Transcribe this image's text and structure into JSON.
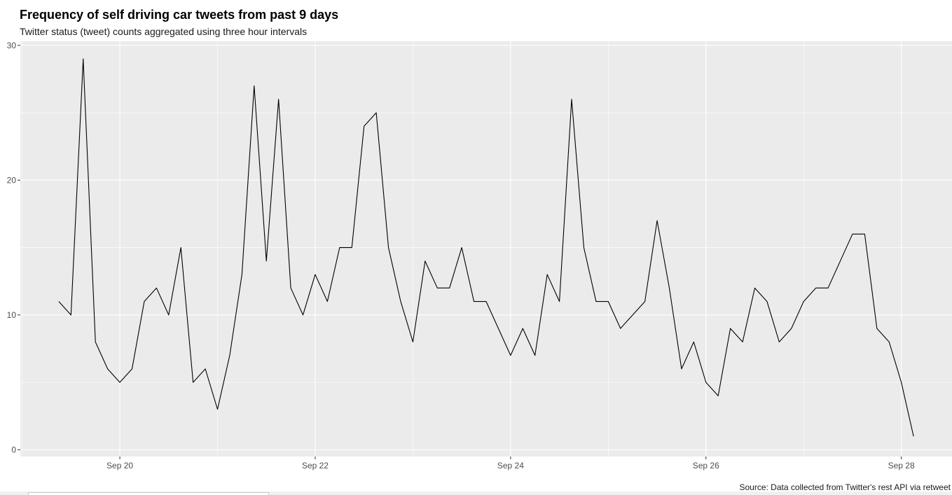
{
  "chart_data": {
    "type": "line",
    "title": "Frequency of self driving car tweets from past 9 days",
    "subtitle": "Twitter status (tweet) counts aggregated using three hour intervals",
    "caption": "Source: Data collected from Twitter's rest API via retweet",
    "xlabel": "",
    "ylabel": "",
    "x_start": "2017-09-19T09:00",
    "x_step_hours": 3,
    "x_ticks": [
      {
        "date": "2017-09-20",
        "label": "Sep 20"
      },
      {
        "date": "2017-09-22",
        "label": "Sep 22"
      },
      {
        "date": "2017-09-24",
        "label": "Sep 24"
      },
      {
        "date": "2017-09-26",
        "label": "Sep 26"
      },
      {
        "date": "2017-09-28",
        "label": "Sep 28"
      }
    ],
    "y_ticks": [
      0,
      10,
      20,
      30
    ],
    "ylim": [
      -0.5,
      30.3
    ],
    "grid": true,
    "colors": {
      "panel": "#ebebeb",
      "grid": "#ffffff",
      "line": "#000000"
    },
    "values": [
      11,
      10,
      29,
      8,
      6,
      5,
      6,
      11,
      12,
      10,
      15,
      5,
      6,
      3,
      7,
      13,
      27,
      14,
      26,
      12,
      10,
      13,
      11,
      15,
      15,
      24,
      25,
      15,
      11,
      8,
      14,
      12,
      12,
      15,
      11,
      11,
      9,
      7,
      9,
      7,
      13,
      11,
      26,
      15,
      11,
      11,
      9,
      10,
      11,
      17,
      12,
      6,
      8,
      5,
      4,
      9,
      8,
      12,
      11,
      8,
      9,
      11,
      12,
      12,
      14,
      16,
      16,
      9,
      8,
      5,
      1
    ]
  }
}
